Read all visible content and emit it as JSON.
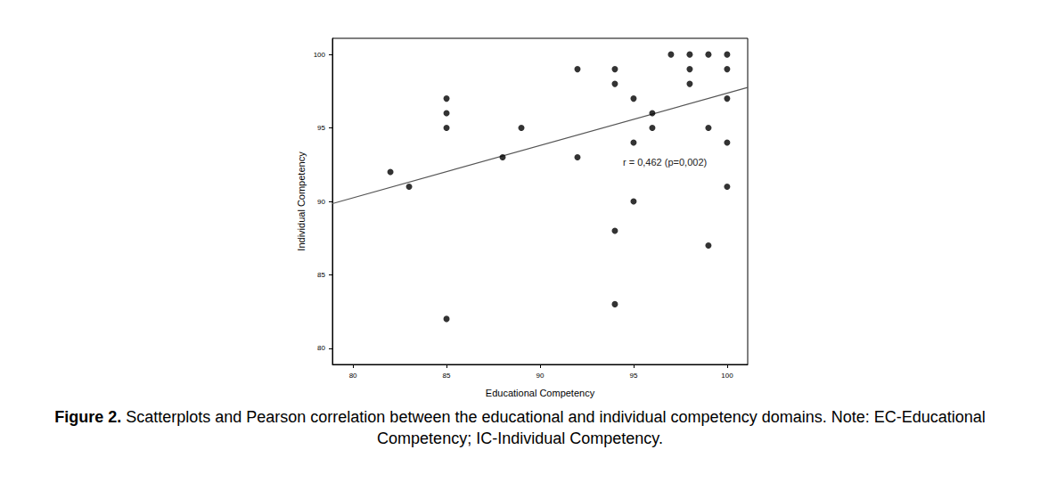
{
  "chart_data": {
    "type": "scatter",
    "x_label": "Educational Competency",
    "y_label": "Individual Competency",
    "x": [
      82,
      83,
      85,
      85,
      85,
      85,
      88,
      89,
      92,
      92,
      94,
      94,
      94,
      94,
      95,
      95,
      95,
      96,
      96,
      97,
      98,
      98,
      98,
      99,
      99,
      99,
      100,
      100,
      100,
      100,
      100
    ],
    "values": [
      92,
      91,
      97,
      96,
      95,
      82,
      93,
      95,
      99,
      93,
      99,
      98,
      88,
      83,
      97,
      94,
      90,
      96,
      95,
      100,
      100,
      99,
      98,
      100,
      95,
      87,
      100,
      99,
      97,
      94,
      91
    ],
    "xlim": [
      78.9,
      101.1
    ],
    "ylim": [
      78.9,
      101.1
    ],
    "xticks": [
      80,
      85,
      90,
      95,
      100
    ],
    "yticks": [
      80,
      85,
      90,
      95,
      100
    ],
    "grid": false,
    "color": "#000000",
    "marker": "circle",
    "fit_line": {
      "x": [
        78.9,
        101.1
      ],
      "y": [
        89.85,
        97.76
      ],
      "color": "#555555",
      "line_style": "solid"
    },
    "annotations": [
      {
        "text": "r = 0,462 (p=0,002)"
      }
    ],
    "caption": {
      "label": "Figure 2.",
      "text": "Scatterplots and Pearson correlation between the educational and individual competency domains. Note: EC-Educational Competency; IC-Individual Competency."
    }
  }
}
